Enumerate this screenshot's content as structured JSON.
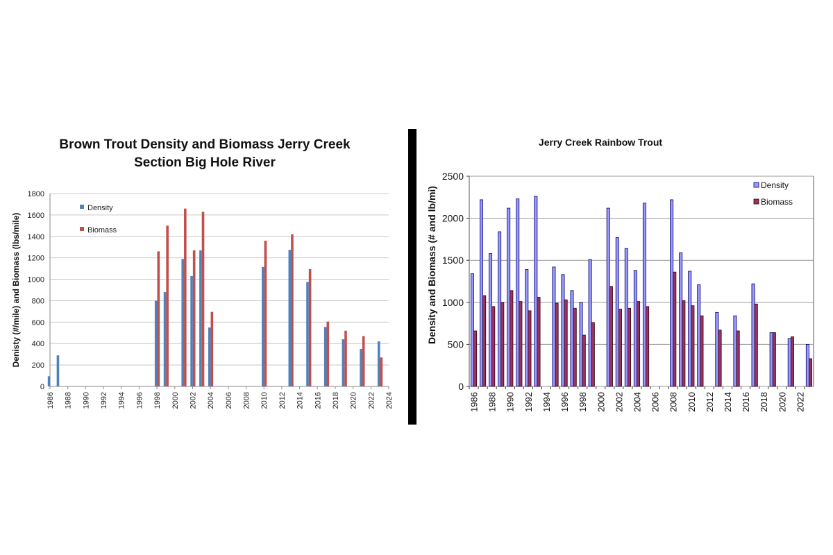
{
  "colors": {
    "left_density": "#4f81bd",
    "left_biomass": "#c0504d",
    "right_density_fill": "#9999ff",
    "right_density_stroke": "#000066",
    "right_biomass_fill": "#993366",
    "right_biomass_stroke": "#330000",
    "divider": "#000000",
    "grid": "#c8c8c8"
  },
  "chart_data": [
    {
      "type": "bar",
      "title_lines": [
        "Brown Trout Density and Biomass Jerry Creek",
        "Section Big Hole River"
      ],
      "ylabel": "Denisty (#/mile) and Biomass (lbs/mile)",
      "xlabel": "",
      "ylim": [
        0,
        1800
      ],
      "yticks": [
        0,
        200,
        400,
        600,
        800,
        1000,
        1200,
        1400,
        1600,
        1800
      ],
      "xlim": [
        1986,
        2024
      ],
      "xticks": [
        1986,
        1988,
        1990,
        1992,
        1994,
        1996,
        1998,
        2000,
        2002,
        2004,
        2006,
        2008,
        2010,
        2012,
        2014,
        2016,
        2018,
        2020,
        2022,
        2024
      ],
      "grid": true,
      "legend_position": "top-left",
      "series": [
        {
          "name": "Density",
          "points": [
            [
              1986,
              95
            ],
            [
              1987,
              290
            ],
            [
              1998,
              800
            ],
            [
              1999,
              880
            ],
            [
              2001,
              1190
            ],
            [
              2002,
              1030
            ],
            [
              2003,
              1270
            ],
            [
              2004,
              550
            ],
            [
              2010,
              1115
            ],
            [
              2013,
              1275
            ],
            [
              2015,
              975
            ],
            [
              2017,
              555
            ],
            [
              2019,
              440
            ],
            [
              2021,
              350
            ],
            [
              2023,
              420
            ]
          ]
        },
        {
          "name": "Biomass",
          "points": [
            [
              1998,
              1260
            ],
            [
              1999,
              1500
            ],
            [
              2001,
              1660
            ],
            [
              2002,
              1270
            ],
            [
              2003,
              1630
            ],
            [
              2004,
              695
            ],
            [
              2010,
              1360
            ],
            [
              2013,
              1420
            ],
            [
              2015,
              1095
            ],
            [
              2017,
              605
            ],
            [
              2019,
              520
            ],
            [
              2021,
              470
            ],
            [
              2023,
              270
            ]
          ]
        }
      ]
    },
    {
      "type": "bar",
      "title": "Jerry Creek Rainbow Trout",
      "ylabel": "Density and Biomass (# and lb/mi)",
      "xlabel": "",
      "ylim": [
        0,
        2500
      ],
      "yticks": [
        0,
        500,
        1000,
        1500,
        2000,
        2500
      ],
      "categories": [
        "1986",
        "1987",
        "1988",
        "1989",
        "1990",
        "1991",
        "1992",
        "1993",
        "1994",
        "1995",
        "1996",
        "1997",
        "1998",
        "1999",
        "2000",
        "2001",
        "2002",
        "2003",
        "2004",
        "2005",
        "2006",
        "2007",
        "2008",
        "2009",
        "2010",
        "2011",
        "2012",
        "2013",
        "2014",
        "2015",
        "2016",
        "2017",
        "2018",
        "2019",
        "2020",
        "2021",
        "2022",
        "2023"
      ],
      "tick_labels": [
        "1986",
        "1988",
        "1990",
        "1992",
        "1994",
        "1996",
        "1998",
        "2000",
        "2002",
        "2004",
        "2006",
        "2008",
        "2010",
        "2012",
        "2014",
        "2016",
        "2018",
        "2020",
        "2022"
      ],
      "grid": true,
      "legend_position": "top-right",
      "series": [
        {
          "name": "Density",
          "values": [
            1340,
            2220,
            1580,
            1840,
            2120,
            2230,
            1390,
            2260,
            null,
            1420,
            1330,
            1140,
            1000,
            1510,
            null,
            2120,
            1770,
            1640,
            1380,
            2180,
            null,
            null,
            2220,
            1590,
            1370,
            1210,
            null,
            880,
            null,
            840,
            null,
            1220,
            null,
            640,
            null,
            570,
            null,
            500
          ]
        },
        {
          "name": "Biomass",
          "values": [
            660,
            1080,
            950,
            1000,
            1140,
            1010,
            900,
            1060,
            null,
            990,
            1030,
            930,
            610,
            760,
            null,
            1190,
            920,
            930,
            1010,
            950,
            null,
            null,
            1360,
            1020,
            960,
            840,
            null,
            670,
            null,
            660,
            null,
            980,
            null,
            640,
            null,
            590,
            null,
            330
          ]
        }
      ]
    }
  ]
}
